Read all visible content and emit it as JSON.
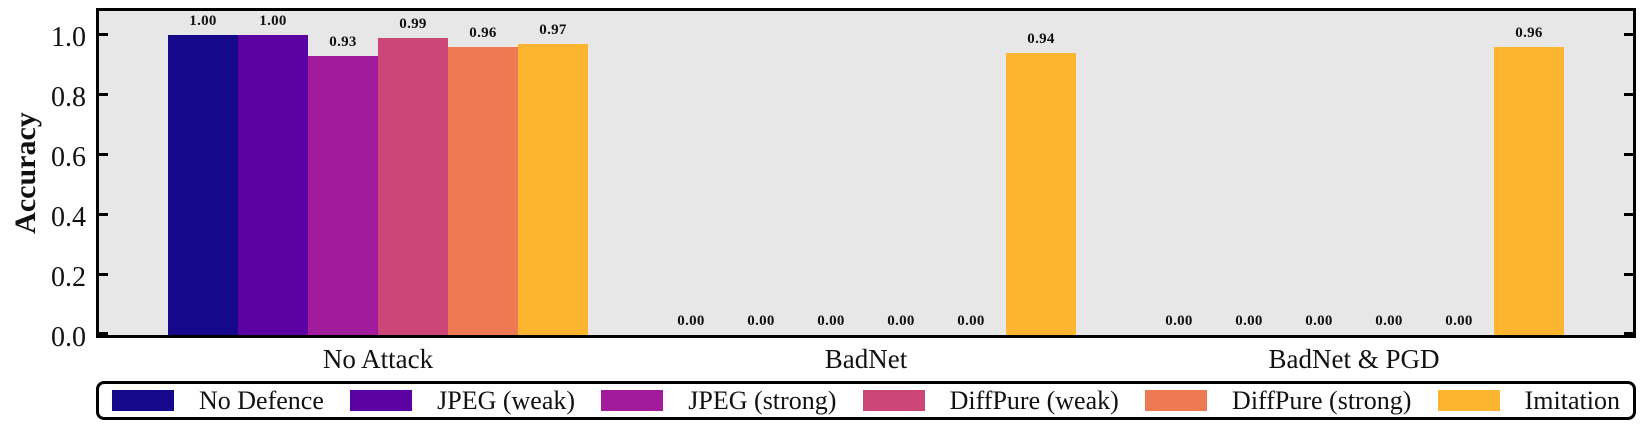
{
  "figure": {
    "background": "#ffffff",
    "frame_color": "#000000",
    "plot_background": "#e7e7e7",
    "text_color": "#111111"
  },
  "chart_data": {
    "type": "bar",
    "title": "",
    "xlabel": "",
    "ylabel": "Accuracy",
    "categories": [
      "No Attack",
      "BadNet",
      "BadNet & PGD"
    ],
    "series": [
      {
        "name": "No Defence",
        "color": "#15088b",
        "values": [
          1.0,
          0.0,
          0.0
        ]
      },
      {
        "name": "JPEG (weak)",
        "color": "#5c02a3",
        "values": [
          1.0,
          0.0,
          0.0
        ]
      },
      {
        "name": "JPEG (strong)",
        "color": "#a21b9c",
        "values": [
          0.93,
          0.0,
          0.0
        ]
      },
      {
        "name": "DiffPure (weak)",
        "color": "#cc4778",
        "values": [
          0.99,
          0.0,
          0.0
        ]
      },
      {
        "name": "DiffPure (strong)",
        "color": "#ed7a53",
        "values": [
          0.96,
          0.0,
          0.0
        ]
      },
      {
        "name": "Imitation",
        "color": "#fdb42f",
        "values": [
          0.97,
          0.94,
          0.96
        ]
      }
    ],
    "bar_value_label_decimals": 2,
    "y_ticks": [
      0.0,
      0.2,
      0.4,
      0.6,
      0.8,
      1.0
    ],
    "ylim": [
      0,
      1.1
    ],
    "grid": false,
    "legend": {
      "position": "bottom"
    }
  }
}
